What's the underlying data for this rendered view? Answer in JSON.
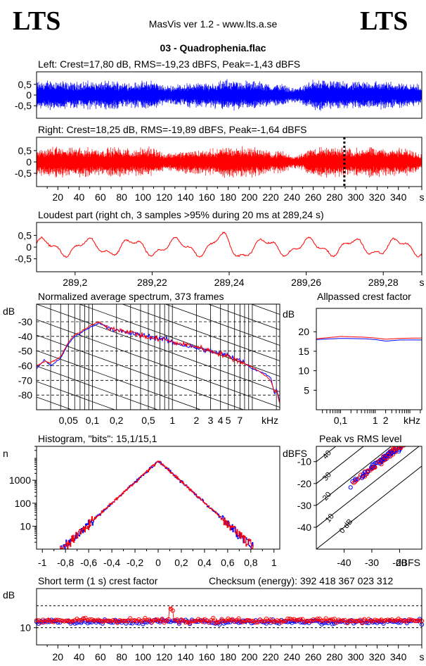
{
  "header": {
    "logo_left": "LTS",
    "logo_right": "LTS",
    "app_title": "MasVis ver 1.2 - www.lts.a.se",
    "file_name": "03 - Quadrophenia.flac"
  },
  "colors": {
    "left": "#0000ff",
    "right": "#ff0000",
    "grid": "#000000"
  },
  "chart_data": [
    {
      "id": "left_waveform",
      "type": "area",
      "title": "Left: Crest=17,80 dB, RMS=-19,23 dBFS, Peak=-1,43 dBFS",
      "yticks": [
        "0,5",
        "0",
        "-0,5"
      ],
      "ylim": [
        -1,
        1
      ],
      "xlim": [
        0,
        362
      ],
      "envelope": {
        "x": [
          0,
          10,
          20,
          30,
          40,
          50,
          60,
          70,
          80,
          90,
          100,
          110,
          120,
          130,
          140,
          150,
          160,
          170,
          180,
          190,
          200,
          210,
          220,
          230,
          240,
          250,
          260,
          270,
          280,
          290,
          300,
          310,
          320,
          330,
          340,
          350,
          362
        ],
        "y": [
          0.7,
          0.75,
          0.8,
          0.65,
          0.7,
          0.72,
          0.68,
          0.75,
          0.7,
          0.65,
          0.7,
          0.78,
          0.45,
          0.55,
          0.6,
          0.65,
          0.62,
          0.7,
          0.8,
          0.75,
          0.72,
          0.7,
          0.55,
          0.6,
          0.35,
          0.5,
          0.78,
          0.75,
          0.72,
          0.7,
          0.65,
          0.75,
          0.72,
          0.7,
          0.68,
          0.65,
          0.5
        ]
      }
    },
    {
      "id": "right_waveform",
      "type": "area",
      "title": "Right: Crest=18,25 dB, RMS=-19,89 dBFS, Peak=-1,64 dBFS",
      "yticks": [
        "0,5",
        "0",
        "-0,5"
      ],
      "ylim": [
        -1,
        1
      ],
      "xlim": [
        0,
        362
      ],
      "xticks": [
        "20",
        "40",
        "60",
        "80",
        "100",
        "120",
        "140",
        "160",
        "180",
        "200",
        "220",
        "240",
        "260",
        "280",
        "300",
        "320",
        "340",
        "s"
      ],
      "xtick_values": [
        20,
        40,
        60,
        80,
        100,
        120,
        140,
        160,
        180,
        200,
        220,
        240,
        260,
        280,
        300,
        320,
        340,
        362
      ],
      "marker_x": 289.24,
      "envelope": {
        "x": [
          0,
          10,
          20,
          30,
          40,
          50,
          60,
          70,
          80,
          90,
          100,
          110,
          120,
          130,
          140,
          150,
          160,
          170,
          180,
          190,
          200,
          210,
          220,
          230,
          240,
          250,
          260,
          270,
          280,
          290,
          300,
          310,
          320,
          330,
          340,
          350,
          362
        ],
        "y": [
          0.6,
          0.7,
          0.75,
          0.68,
          0.7,
          0.72,
          0.65,
          0.72,
          0.7,
          0.6,
          0.68,
          0.72,
          0.42,
          0.5,
          0.55,
          0.6,
          0.6,
          0.65,
          0.78,
          0.74,
          0.72,
          0.68,
          0.5,
          0.55,
          0.3,
          0.45,
          0.75,
          0.72,
          0.7,
          0.72,
          0.65,
          0.72,
          0.7,
          0.68,
          0.66,
          0.62,
          0.45
        ]
      }
    },
    {
      "id": "loudest_part",
      "type": "line",
      "title": "Loudest part (right ch, 3 samples >95% during 20 ms at 289,24 s)",
      "yticks": [
        "0,5",
        "0",
        "-0,5"
      ],
      "ylim": [
        -1,
        1
      ],
      "xlim": [
        289.19,
        289.29
      ],
      "xticks": [
        "289,2",
        "289,22",
        "289,24",
        "289,26",
        "289,28",
        "s"
      ],
      "xtick_values": [
        289.2,
        289.22,
        289.24,
        289.26,
        289.28,
        289.29
      ]
    },
    {
      "id": "spectrum",
      "type": "line",
      "title": "Normalized average spectrum, 373 frames",
      "ylabel": "dB",
      "yticks": [
        "-30",
        "-40",
        "-50",
        "-60",
        "-70",
        "-80"
      ],
      "ytick_values": [
        -30,
        -40,
        -50,
        -60,
        -70,
        -80
      ],
      "ylim": [
        -90,
        -18
      ],
      "xlim_hz": [
        20,
        22050
      ],
      "xticks": [
        "0,05",
        "0,1",
        "0,2",
        "0,5",
        "1",
        "2",
        "3",
        "4",
        "5",
        "7",
        "kHz"
      ],
      "xtick_values": [
        50,
        100,
        200,
        500,
        1000,
        2000,
        3000,
        4000,
        5000,
        7000,
        16000
      ],
      "series": [
        {
          "name": "",
          "color": "#0000ff",
          "points": [
            [
              20,
              -62
            ],
            [
              25,
              -56
            ],
            [
              30,
              -60
            ],
            [
              40,
              -55
            ],
            [
              50,
              -45
            ],
            [
              60,
              -40
            ],
            [
              70,
              -38
            ],
            [
              80,
              -36
            ],
            [
              100,
              -33
            ],
            [
              120,
              -31
            ],
            [
              150,
              -33
            ],
            [
              200,
              -36
            ],
            [
              300,
              -38
            ],
            [
              500,
              -40
            ],
            [
              800,
              -42
            ],
            [
              1000,
              -44
            ],
            [
              2000,
              -48
            ],
            [
              3000,
              -50
            ],
            [
              4000,
              -52
            ],
            [
              5000,
              -53
            ],
            [
              7000,
              -56
            ],
            [
              10000,
              -62
            ],
            [
              14000,
              -65
            ],
            [
              17000,
              -68
            ],
            [
              19000,
              -80
            ],
            [
              20000,
              -75
            ],
            [
              22000,
              -85
            ]
          ]
        },
        {
          "name": "",
          "color": "#ff0000",
          "points": [
            [
              20,
              -60
            ],
            [
              25,
              -57
            ],
            [
              30,
              -58
            ],
            [
              40,
              -54
            ],
            [
              50,
              -44
            ],
            [
              60,
              -39
            ],
            [
              70,
              -37
            ],
            [
              80,
              -35
            ],
            [
              100,
              -32
            ],
            [
              120,
              -30
            ],
            [
              150,
              -34
            ],
            [
              200,
              -35
            ],
            [
              300,
              -37
            ],
            [
              500,
              -41
            ],
            [
              800,
              -42
            ],
            [
              1000,
              -44
            ],
            [
              2000,
              -47
            ],
            [
              3000,
              -50
            ],
            [
              4000,
              -52
            ],
            [
              5000,
              -54
            ],
            [
              7000,
              -57
            ],
            [
              10000,
              -61
            ],
            [
              14000,
              -66
            ],
            [
              17000,
              -70
            ],
            [
              19000,
              -78
            ],
            [
              20000,
              -76
            ],
            [
              22000,
              -86
            ]
          ]
        }
      ]
    },
    {
      "id": "allpassed_crest",
      "type": "line",
      "title": "Allpassed crest factor",
      "ylabel": "dB",
      "yticks": [
        "20",
        "15",
        "10",
        "5"
      ],
      "ytick_values": [
        20,
        15,
        10,
        5
      ],
      "ylim": [
        0,
        26
      ],
      "xticks": [
        "0,1",
        "1",
        "2",
        "kHz"
      ],
      "xtick_values": [
        100,
        1000,
        2000,
        16000
      ],
      "xlim_hz": [
        20,
        22050
      ],
      "series": [
        {
          "name": "",
          "color": "#0000ff",
          "points": [
            [
              20,
              18.0
            ],
            [
              100,
              18.3
            ],
            [
              500,
              18.2
            ],
            [
              1000,
              18.0
            ],
            [
              2000,
              17.6
            ],
            [
              5000,
              17.9
            ],
            [
              22050,
              17.9
            ]
          ]
        },
        {
          "name": "",
          "color": "#ff0000",
          "points": [
            [
              20,
              18.2
            ],
            [
              100,
              18.8
            ],
            [
              500,
              18.6
            ],
            [
              1000,
              18.4
            ],
            [
              2000,
              18.1
            ],
            [
              5000,
              18.3
            ],
            [
              22050,
              18.4
            ]
          ]
        }
      ]
    },
    {
      "id": "histogram",
      "type": "bar",
      "title": "Histogram, \"bits\": 15,1/15,1",
      "ylabel": "n",
      "yticks": [
        "1000",
        "100",
        "10"
      ],
      "ytick_values": [
        1000,
        100,
        10
      ],
      "ylim_log": [
        1,
        30000
      ],
      "xlim": [
        -1.05,
        1.05
      ],
      "xticks": [
        "-1",
        "-0,8",
        "-0,6",
        "-0,4",
        "-0,2",
        "0",
        "0,2",
        "0,4",
        "0,6",
        "0,8",
        "1"
      ],
      "xtick_values": [
        -1,
        -0.8,
        -0.6,
        -0.4,
        -0.2,
        0,
        0.2,
        0.4,
        0.6,
        0.8,
        1
      ],
      "peak_count": 7000,
      "range": [
        -0.85,
        0.82
      ]
    },
    {
      "id": "peak_vs_rms",
      "type": "scatter",
      "title": "Peak vs RMS level",
      "ylabel": "dBFS",
      "xlabel": "dBFS",
      "yticks": [
        "-10",
        "-20",
        "-30",
        "-40"
      ],
      "ytick_values": [
        -10,
        -20,
        -30,
        -40
      ],
      "xticks": [
        "-40",
        "-30",
        "-20"
      ],
      "xtick_values": [
        -40,
        -30,
        -20
      ],
      "xlim": [
        -50,
        -12
      ],
      "ylim": [
        -50,
        -3
      ],
      "diagonal_labels": [
        "40",
        "30",
        "20",
        "10",
        "0 dB"
      ],
      "diagonal_values": [
        40,
        30,
        20,
        10,
        0
      ],
      "cluster": {
        "rms_range": [
          -42,
          -15
        ],
        "crest_center": 17
      }
    },
    {
      "id": "short_term_crest",
      "type": "scatter",
      "title": "Short term (1 s) crest factor",
      "annotation": "Checksum (energy):   392 418 367 023 312",
      "ylabel": "dB",
      "yticks": [
        "10"
      ],
      "ytick_values": [
        10
      ],
      "ylim": [
        3,
        26
      ],
      "xlim": [
        0,
        362
      ],
      "xticks": [
        "20",
        "40",
        "60",
        "80",
        "100",
        "120",
        "140",
        "160",
        "180",
        "200",
        "220",
        "240",
        "260",
        "280",
        "300",
        "320",
        "340",
        "s"
      ],
      "xtick_values": [
        20,
        40,
        60,
        80,
        100,
        120,
        140,
        160,
        180,
        200,
        220,
        240,
        260,
        280,
        300,
        320,
        340,
        362
      ],
      "dashed_levels": [
        10,
        19
      ],
      "mean_level": 12.5
    }
  ]
}
